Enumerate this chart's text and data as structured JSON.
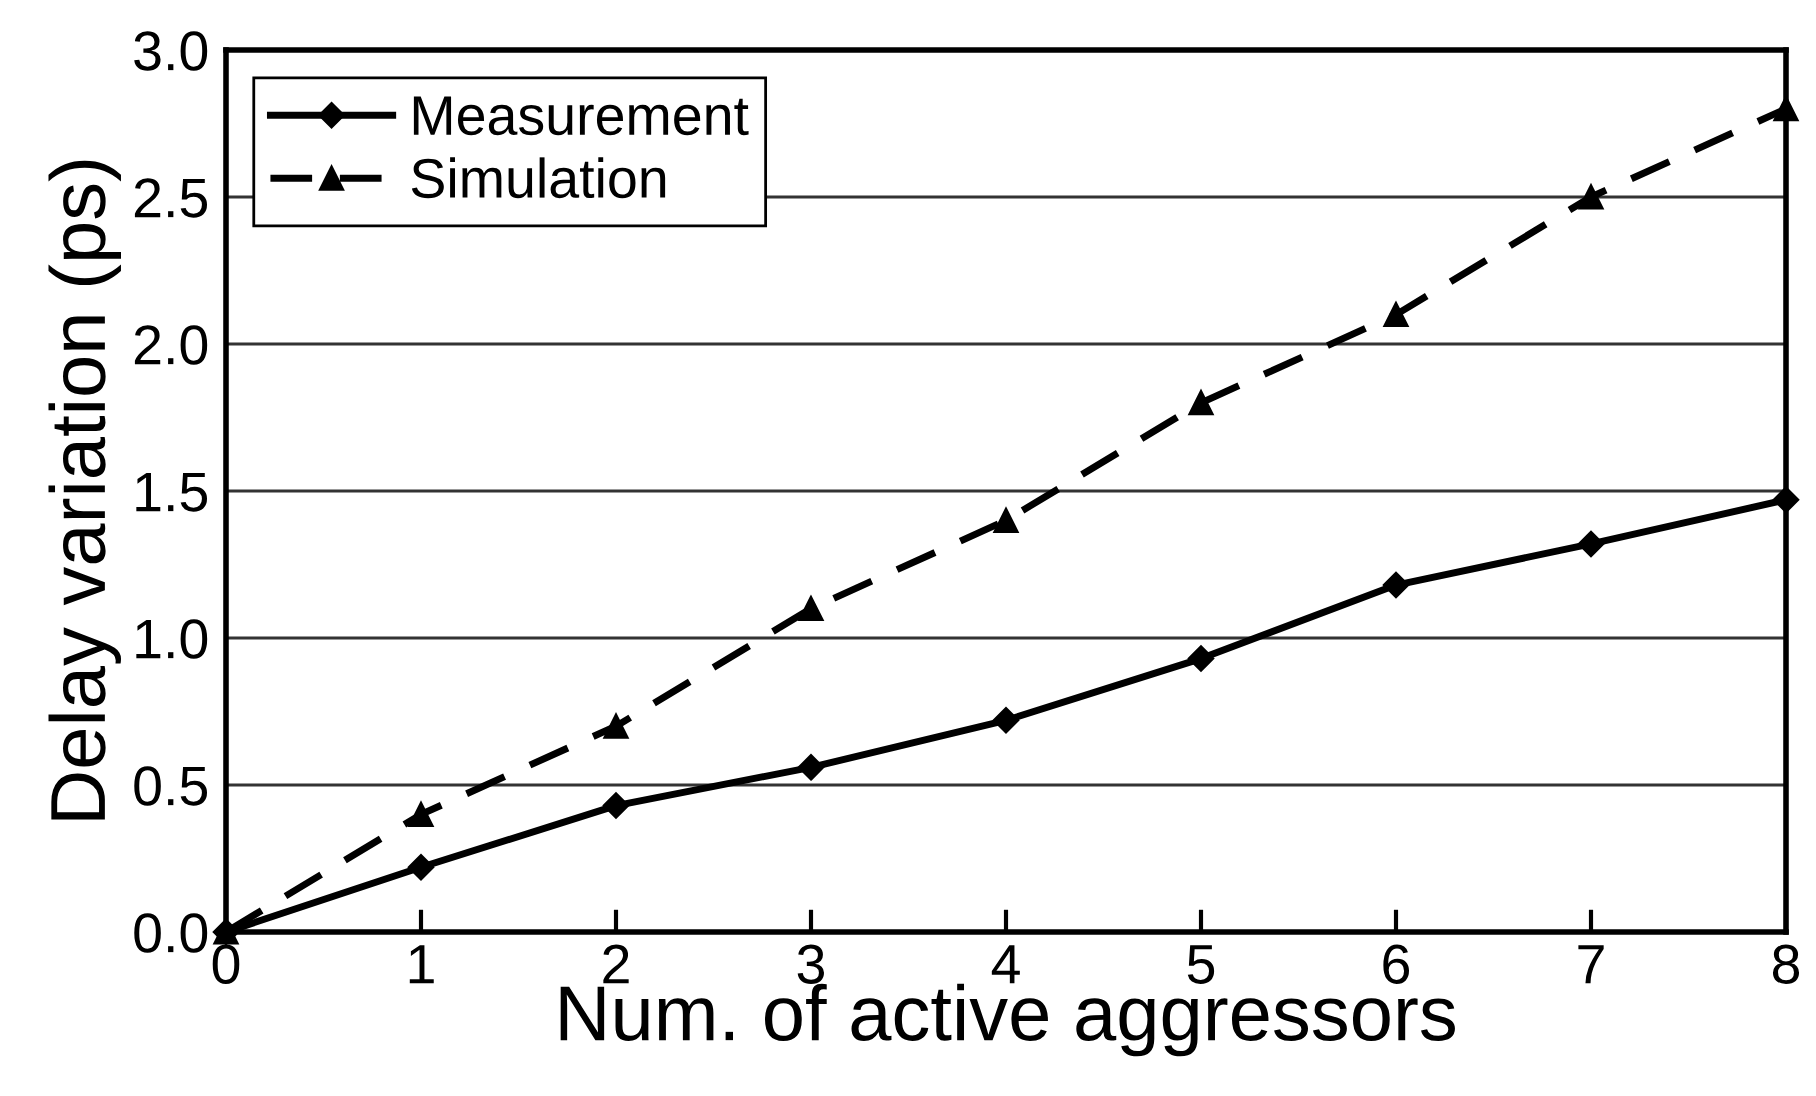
{
  "chart_data": {
    "type": "line",
    "xlabel": "Num. of active aggressors",
    "ylabel": "Delay variation (ps)",
    "x": [
      0,
      1,
      2,
      3,
      4,
      5,
      6,
      7,
      8
    ],
    "series": [
      {
        "name": "Measurement",
        "color": "#000000",
        "marker": "diamond",
        "line_style": "solid",
        "values": [
          0,
          0.22,
          0.43,
          0.56,
          0.72,
          0.93,
          1.18,
          1.32,
          1.47
        ]
      },
      {
        "name": "Simulation",
        "color": "#000000",
        "marker": "triangle",
        "line_style": "dashed",
        "values": [
          0,
          0.4,
          0.7,
          1.1,
          1.4,
          1.8,
          2.1,
          2.5,
          2.8
        ]
      }
    ],
    "xlim": [
      0,
      8
    ],
    "xticks": [
      0,
      1,
      2,
      3,
      4,
      5,
      6,
      7,
      8
    ],
    "ylim": [
      0,
      3
    ],
    "yticks": [
      {
        "value": 0,
        "label": "0.0"
      },
      {
        "value": 0.5,
        "label": "0.5"
      },
      {
        "value": 1,
        "label": "1.0"
      },
      {
        "value": 1.5,
        "label": "1.5"
      },
      {
        "value": 2,
        "label": "2.0"
      },
      {
        "value": 2.5,
        "label": "2.5"
      },
      {
        "value": 3,
        "label": "3.0"
      }
    ],
    "grid": "y",
    "legend": "top left"
  }
}
